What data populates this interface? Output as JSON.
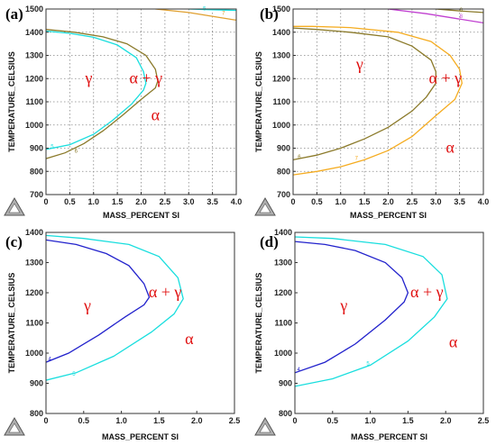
{
  "chart_data": [
    {
      "panel": "(a)",
      "type": "line",
      "xlabel": "MASS_PERCENT SI",
      "ylabel": "TEMPERATURE_CELSIUS",
      "xlim": [
        0,
        4
      ],
      "ylim": [
        700,
        1500
      ],
      "xticks": [
        "0",
        "0.5",
        "1.0",
        "1.5",
        "2.0",
        "2.5",
        "3.0",
        "3.5",
        "4.0"
      ],
      "yticks": [
        "700",
        "800",
        "900",
        "1000",
        "1100",
        "1200",
        "1300",
        "1400",
        "1500"
      ],
      "grid": true,
      "regions": [
        {
          "label": "γ",
          "x": 0.9,
          "y": 1180
        },
        {
          "label": "α + γ",
          "x": 2.1,
          "y": 1180
        },
        {
          "label": "α",
          "x": 2.3,
          "y": 1020
        }
      ],
      "series": [
        {
          "color": "#8b7a2a",
          "label": "6",
          "label_at": [
            0.6,
            880
          ],
          "points": [
            [
              0,
              855
            ],
            [
              0.4,
              880
            ],
            [
              0.8,
              920
            ],
            [
              1.2,
              975
            ],
            [
              1.6,
              1040
            ],
            [
              2.0,
              1110
            ],
            [
              2.3,
              1160
            ],
            [
              2.35,
              1190
            ],
            [
              2.3,
              1240
            ],
            [
              2.1,
              1300
            ],
            [
              1.7,
              1350
            ],
            [
              1.2,
              1380
            ],
            [
              0.6,
              1400
            ],
            [
              0,
              1412
            ]
          ]
        },
        {
          "color": "#19dede",
          "label": "5",
          "label_at": [
            0.1,
            900
          ],
          "points": [
            [
              0,
              895
            ],
            [
              0.5,
              915
            ],
            [
              1.0,
              960
            ],
            [
              1.4,
              1020
            ],
            [
              1.8,
              1090
            ],
            [
              2.05,
              1150
            ],
            [
              2.1,
              1180
            ],
            [
              2.05,
              1230
            ],
            [
              1.9,
              1290
            ],
            [
              1.5,
              1345
            ],
            [
              1.0,
              1378
            ],
            [
              0.5,
              1395
            ],
            [
              0,
              1405
            ]
          ]
        },
        {
          "color": "#e0a030",
          "label": "7",
          "label_at": [
            3.7,
            1475
          ],
          "points": [
            [
              2.3,
              1500
            ],
            [
              3.0,
              1485
            ],
            [
              3.6,
              1465
            ],
            [
              4.0,
              1452
            ]
          ]
        },
        {
          "color": "#19dede",
          "label": "5",
          "label_at": [
            3.3,
            1495
          ],
          "points": [
            [
              3.0,
              1500
            ],
            [
              3.5,
              1497
            ],
            [
              4.0,
              1494
            ]
          ]
        }
      ]
    },
    {
      "panel": "(b)",
      "type": "line",
      "xlabel": "MASS_PERCENT SI",
      "ylabel": "TEMPERATURE_CELSIUS",
      "xlim": [
        0,
        4
      ],
      "ylim": [
        700,
        1500
      ],
      "xticks": [
        "0",
        "0.5",
        "1.0",
        "1.5",
        "2.0",
        "2.5",
        "3.0",
        "3.5",
        "4.0"
      ],
      "yticks": [
        "700",
        "800",
        "900",
        "1000",
        "1100",
        "1200",
        "1300",
        "1400",
        "1500"
      ],
      "grid": true,
      "regions": [
        {
          "label": "γ",
          "x": 1.4,
          "y": 1240
        },
        {
          "label": "α + γ",
          "x": 3.2,
          "y": 1180
        },
        {
          "label": "α",
          "x": 3.3,
          "y": 880
        }
      ],
      "series": [
        {
          "color": "#8b7a2a",
          "label": "6",
          "label_at": [
            0.1,
            855
          ],
          "points": [
            [
              0,
              850
            ],
            [
              0.5,
              870
            ],
            [
              1.0,
              900
            ],
            [
              1.5,
              940
            ],
            [
              2.0,
              990
            ],
            [
              2.5,
              1060
            ],
            [
              2.8,
              1120
            ],
            [
              3.0,
              1180
            ],
            [
              3.0,
              1230
            ],
            [
              2.9,
              1280
            ],
            [
              2.5,
              1340
            ],
            [
              2.0,
              1380
            ],
            [
              1.2,
              1400
            ],
            [
              0.5,
              1412
            ],
            [
              0,
              1418
            ]
          ]
        },
        {
          "color": "#f5ac20",
          "label": "7",
          "label_at": [
            1.3,
            850
          ],
          "points": [
            [
              0,
              785
            ],
            [
              0.5,
              800
            ],
            [
              1.0,
              820
            ],
            [
              1.5,
              850
            ],
            [
              2.0,
              890
            ],
            [
              2.5,
              950
            ],
            [
              3.0,
              1040
            ],
            [
              3.4,
              1110
            ],
            [
              3.55,
              1180
            ],
            [
              3.5,
              1240
            ],
            [
              3.3,
              1300
            ],
            [
              2.9,
              1360
            ],
            [
              2.2,
              1400
            ],
            [
              1.2,
              1420
            ],
            [
              0.4,
              1425
            ],
            [
              0,
              1425
            ]
          ]
        },
        {
          "color": "#c040d0",
          "label": "8",
          "label_at": [
            3.5,
            1462
          ],
          "points": [
            [
              2.0,
              1500
            ],
            [
              2.8,
              1480
            ],
            [
              3.4,
              1460
            ],
            [
              4.0,
              1440
            ]
          ]
        },
        {
          "color": "#8b7a2a",
          "label": "6",
          "label_at": [
            3.5,
            1488
          ],
          "points": [
            [
              3.0,
              1500
            ],
            [
              3.5,
              1492
            ],
            [
              4.0,
              1485
            ]
          ]
        }
      ]
    },
    {
      "panel": "(c)",
      "type": "line",
      "xlabel": "MASS_PERCENT SI",
      "ylabel": "TEMPERATURE_CELSIUS",
      "xlim": [
        0,
        2.5
      ],
      "ylim": [
        800,
        1400
      ],
      "xticks": [
        "0",
        "0.5",
        "1.0",
        "1.5",
        "2.0",
        "2.5"
      ],
      "yticks": [
        "800",
        "900",
        "1000",
        "1100",
        "1200",
        "1300",
        "1400"
      ],
      "grid": false,
      "regions": [
        {
          "label": "γ",
          "x": 0.55,
          "y": 1140
        },
        {
          "label": "α + γ",
          "x": 1.58,
          "y": 1185
        },
        {
          "label": "α",
          "x": 1.9,
          "y": 1030
        }
      ],
      "series": [
        {
          "color": "#2222cc",
          "label": "4",
          "label_at": [
            0.03,
            975
          ],
          "points": [
            [
              0,
              970
            ],
            [
              0.3,
              1000
            ],
            [
              0.7,
              1060
            ],
            [
              1.05,
              1120
            ],
            [
              1.3,
              1160
            ],
            [
              1.37,
              1185
            ],
            [
              1.3,
              1230
            ],
            [
              1.1,
              1290
            ],
            [
              0.8,
              1330
            ],
            [
              0.4,
              1360
            ],
            [
              0,
              1375
            ]
          ]
        },
        {
          "color": "#19dede",
          "label": "5",
          "label_at": [
            0.35,
            925
          ],
          "points": [
            [
              0,
              910
            ],
            [
              0.4,
              935
            ],
            [
              0.9,
              990
            ],
            [
              1.4,
              1070
            ],
            [
              1.7,
              1130
            ],
            [
              1.82,
              1180
            ],
            [
              1.75,
              1250
            ],
            [
              1.5,
              1320
            ],
            [
              1.1,
              1360
            ],
            [
              0.5,
              1380
            ],
            [
              0,
              1390
            ]
          ]
        }
      ]
    },
    {
      "panel": "(d)",
      "type": "line",
      "xlabel": "MASS_PERCENT SI",
      "ylabel": "TEMPERATURE_CELSIUS",
      "xlim": [
        0,
        2.5
      ],
      "ylim": [
        800,
        1400
      ],
      "xticks": [
        "0",
        "0.5",
        "1.0",
        "1.5",
        "2.0",
        "2.5"
      ],
      "yticks": [
        "800",
        "900",
        "1000",
        "1100",
        "1200",
        "1300",
        "1400"
      ],
      "grid": false,
      "regions": [
        {
          "label": "γ",
          "x": 0.65,
          "y": 1140
        },
        {
          "label": "α + γ",
          "x": 1.75,
          "y": 1185
        },
        {
          "label": "α",
          "x": 2.1,
          "y": 1020
        }
      ],
      "series": [
        {
          "color": "#2222cc",
          "label": "4",
          "label_at": [
            0.03,
            940
          ],
          "points": [
            [
              0,
              935
            ],
            [
              0.4,
              970
            ],
            [
              0.8,
              1030
            ],
            [
              1.2,
              1110
            ],
            [
              1.45,
              1170
            ],
            [
              1.5,
              1200
            ],
            [
              1.42,
              1250
            ],
            [
              1.2,
              1300
            ],
            [
              0.8,
              1340
            ],
            [
              0.4,
              1360
            ],
            [
              0,
              1370
            ]
          ]
        },
        {
          "color": "#19dede",
          "label": "5",
          "label_at": [
            0.95,
            960
          ],
          "points": [
            [
              0,
              890
            ],
            [
              0.5,
              915
            ],
            [
              1.0,
              960
            ],
            [
              1.5,
              1040
            ],
            [
              1.85,
              1120
            ],
            [
              2.02,
              1180
            ],
            [
              1.95,
              1260
            ],
            [
              1.7,
              1320
            ],
            [
              1.2,
              1360
            ],
            [
              0.5,
              1380
            ],
            [
              0,
              1385
            ]
          ]
        }
      ]
    }
  ]
}
